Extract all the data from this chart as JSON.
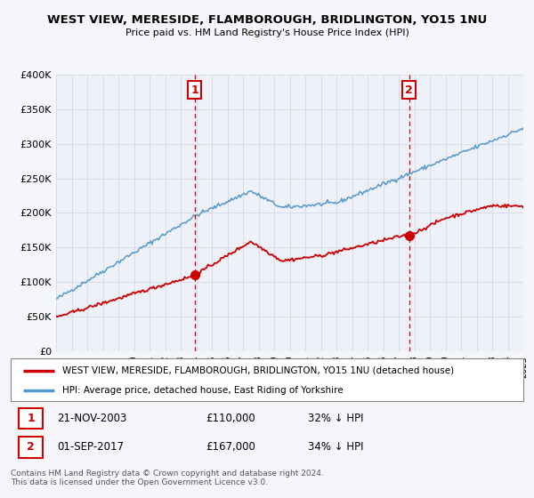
{
  "title": "WEST VIEW, MERESIDE, FLAMBOROUGH, BRIDLINGTON, YO15 1NU",
  "subtitle": "Price paid vs. HM Land Registry's House Price Index (HPI)",
  "background_color": "#f4f6fa",
  "plot_bg_color": "#eef1f8",
  "grid_color": "#d8dce8",
  "red_line_color": "#cc0000",
  "blue_line_color": "#5599cc",
  "marker1_date_x": 2003.9,
  "marker1_y": 110000,
  "marker2_date_x": 2017.67,
  "marker2_y": 167000,
  "legend_line1": "WEST VIEW, MERESIDE, FLAMBOROUGH, BRIDLINGTON, YO15 1NU (detached house)",
  "legend_line2": "HPI: Average price, detached house, East Riding of Yorkshire",
  "annotation1_date": "21-NOV-2003",
  "annotation1_price": "£110,000",
  "annotation1_hpi": "32% ↓ HPI",
  "annotation2_date": "01-SEP-2017",
  "annotation2_price": "£167,000",
  "annotation2_hpi": "34% ↓ HPI",
  "footer": "Contains HM Land Registry data © Crown copyright and database right 2024.\nThis data is licensed under the Open Government Licence v3.0.",
  "xmin": 1995,
  "xmax": 2025,
  "ymin": 0,
  "ymax": 400000,
  "yticks": [
    0,
    50000,
    100000,
    150000,
    200000,
    250000,
    300000,
    350000,
    400000
  ],
  "ytick_labels": [
    "£0",
    "£50K",
    "£100K",
    "£150K",
    "£200K",
    "£250K",
    "£300K",
    "£350K",
    "£400K"
  ]
}
